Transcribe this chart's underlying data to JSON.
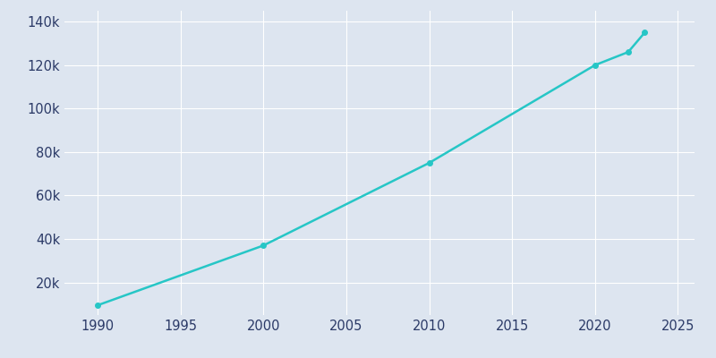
{
  "key_years": [
    1990,
    2000,
    2010,
    2020,
    2022,
    2023
  ],
  "key_population": [
    9500,
    37000,
    75000,
    120000,
    126000,
    135000
  ],
  "line_color": "#26C6C6",
  "background_color": "#DDE5F0",
  "grid_color": "#ffffff",
  "xlim": [
    1988,
    2026
  ],
  "ylim": [
    5000,
    145000
  ],
  "xticks": [
    1990,
    1995,
    2000,
    2005,
    2010,
    2015,
    2020,
    2025
  ],
  "yticks": [
    20000,
    40000,
    60000,
    80000,
    100000,
    120000,
    140000
  ],
  "tick_label_color": "#2B3A67",
  "tick_fontsize": 10.5,
  "line_width": 1.8,
  "marker_size": 4
}
